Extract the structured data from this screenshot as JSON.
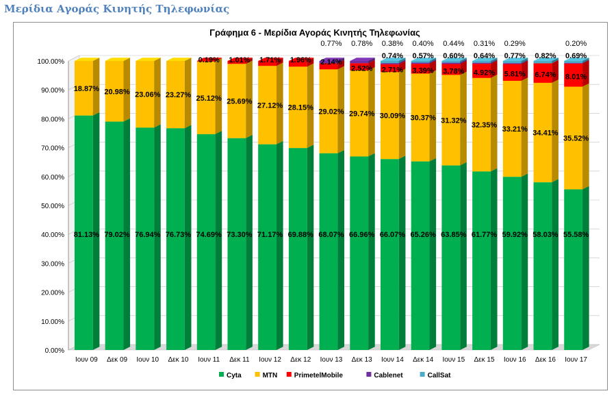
{
  "page": {
    "heading": "Μερίδια Αγοράς Κινητής Τηλεφωνίας"
  },
  "colors": {
    "Cyta": "#00b050",
    "MTN": "#ffc000",
    "PrimetelMobile": "#ff0000",
    "Cablenet": "#7030a0",
    "CallSat": "#4bacc6"
  },
  "chart_data": {
    "type": "bar",
    "stacked": true,
    "three_d": true,
    "title": "Γράφημα 6 - Μερίδια Αγοράς Κινητής Τηλεφωνίας",
    "xlabel": "",
    "ylabel": "",
    "ylim": [
      0,
      100
    ],
    "yticks": [
      "0.00%",
      "10.00%",
      "20.00%",
      "30.00%",
      "40.00%",
      "50.00%",
      "60.00%",
      "70.00%",
      "80.00%",
      "90.00%",
      "100.00%"
    ],
    "grid": true,
    "legend_position": "bottom",
    "categories": [
      "Ιουν 09",
      "Δεκ 09",
      "Ιουν 10",
      "Δεκ 10",
      "Ιουν 11",
      "Δεκ 11",
      "Ιουν 12",
      "Δεκ 12",
      "Ιουν 13",
      "Δεκ 13",
      "Ιουν 14",
      "Δεκ 14",
      "Ιουν 15",
      "Δεκ 15",
      "Ιουν 16",
      "Δεκ 16",
      "Ιουν 17"
    ],
    "series": [
      {
        "name": "Cyta",
        "values": [
          81.13,
          79.02,
          76.94,
          76.73,
          74.69,
          73.3,
          71.17,
          69.88,
          68.07,
          66.96,
          66.07,
          65.26,
          63.85,
          61.77,
          59.92,
          58.03,
          55.58
        ],
        "labels": [
          "81.13%",
          "79.02%",
          "76.94%",
          "76.73%",
          "74.69%",
          "73.30%",
          "71.17%",
          "69.88%",
          "68.07%",
          "66.96%",
          "66.07%",
          "65.26%",
          "63.85%",
          "61.77%",
          "59.92%",
          "58.03%",
          "55.58%"
        ]
      },
      {
        "name": "MTN",
        "values": [
          18.87,
          20.98,
          23.06,
          23.27,
          25.12,
          25.69,
          27.12,
          28.15,
          29.02,
          29.74,
          30.09,
          30.37,
          31.32,
          32.35,
          33.21,
          34.41,
          35.52
        ],
        "labels": [
          "18.87%",
          "20.98%",
          "23.06%",
          "23.27%",
          "25.12%",
          "25.69%",
          "27.12%",
          "28.15%",
          "29.02%",
          "29.74%",
          "30.09%",
          "30.37%",
          "31.32%",
          "32.35%",
          "33.21%",
          "34.41%",
          "35.52%"
        ]
      },
      {
        "name": "PrimetelMobile",
        "values": [
          0,
          0,
          0,
          0,
          0.19,
          1.01,
          1.71,
          1.96,
          2.14,
          2.52,
          2.71,
          3.39,
          3.78,
          4.92,
          5.81,
          6.74,
          8.01
        ],
        "labels": [
          "",
          "",
          "",
          "",
          "0.19%",
          "1.01%",
          "1.71%",
          "1.96%",
          "2.14%",
          "2.52%",
          "2.71%",
          "3.39%",
          "3.78%",
          "4.92%",
          "5.81%",
          "6.74%",
          "8.01%"
        ]
      },
      {
        "name": "Cablenet",
        "values": [
          0,
          0,
          0,
          0,
          0,
          0,
          0,
          0,
          0.77,
          0.78,
          0.38,
          0.4,
          0.44,
          0.31,
          0.29,
          0,
          0.2
        ],
        "labels": [
          "",
          "",
          "",
          "",
          "",
          "",
          "",
          "",
          "0.77%",
          "0.78%",
          "0.38%",
          "0.40%",
          "0.44%",
          "0.31%",
          "0.29%",
          "",
          "0.20%"
        ]
      },
      {
        "name": "CallSat",
        "values": [
          0,
          0,
          0,
          0,
          0,
          0,
          0,
          0,
          0,
          0,
          0.74,
          0.57,
          0.6,
          0.64,
          0.77,
          0.82,
          0.69
        ],
        "labels": [
          "",
          "",
          "",
          "",
          "",
          "",
          "",
          "",
          "",
          "",
          "0.74%",
          "0.57%",
          "0.60%",
          "0.64%",
          "0.77%",
          "0.82%",
          "0.69%"
        ]
      }
    ]
  }
}
